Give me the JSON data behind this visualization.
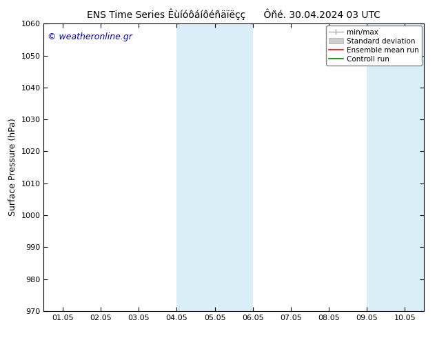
{
  "title_left": "ENS Time Series Êùíóôáíôéñäïëçç",
  "title_right": "Ôñé. 30.04.2024 03 UTC",
  "ylabel": "Surface Pressure (hPa)",
  "ylim": [
    970,
    1060
  ],
  "yticks": [
    970,
    980,
    990,
    1000,
    1010,
    1020,
    1030,
    1040,
    1050,
    1060
  ],
  "xtick_labels": [
    "01.05",
    "02.05",
    "03.05",
    "04.05",
    "05.05",
    "06.05",
    "07.05",
    "08.05",
    "09.05",
    "10.05"
  ],
  "xlim": [
    -0.5,
    9.5
  ],
  "shaded_regions": [
    {
      "xstart": 3.0,
      "xend": 5.0,
      "color": "#daeef8"
    },
    {
      "xstart": 8.0,
      "xend": 9.5,
      "color": "#daeef8"
    }
  ],
  "watermark": "© weatheronline.gr",
  "watermark_color": "#0000cc",
  "watermark_fontsize": 9,
  "legend_labels": [
    "min/max",
    "Standard deviation",
    "Ensemble mean run",
    "Controll run"
  ],
  "background_color": "#ffffff",
  "border_color": "#000000",
  "title_fontsize": 10,
  "tick_fontsize": 8,
  "ylabel_fontsize": 9
}
